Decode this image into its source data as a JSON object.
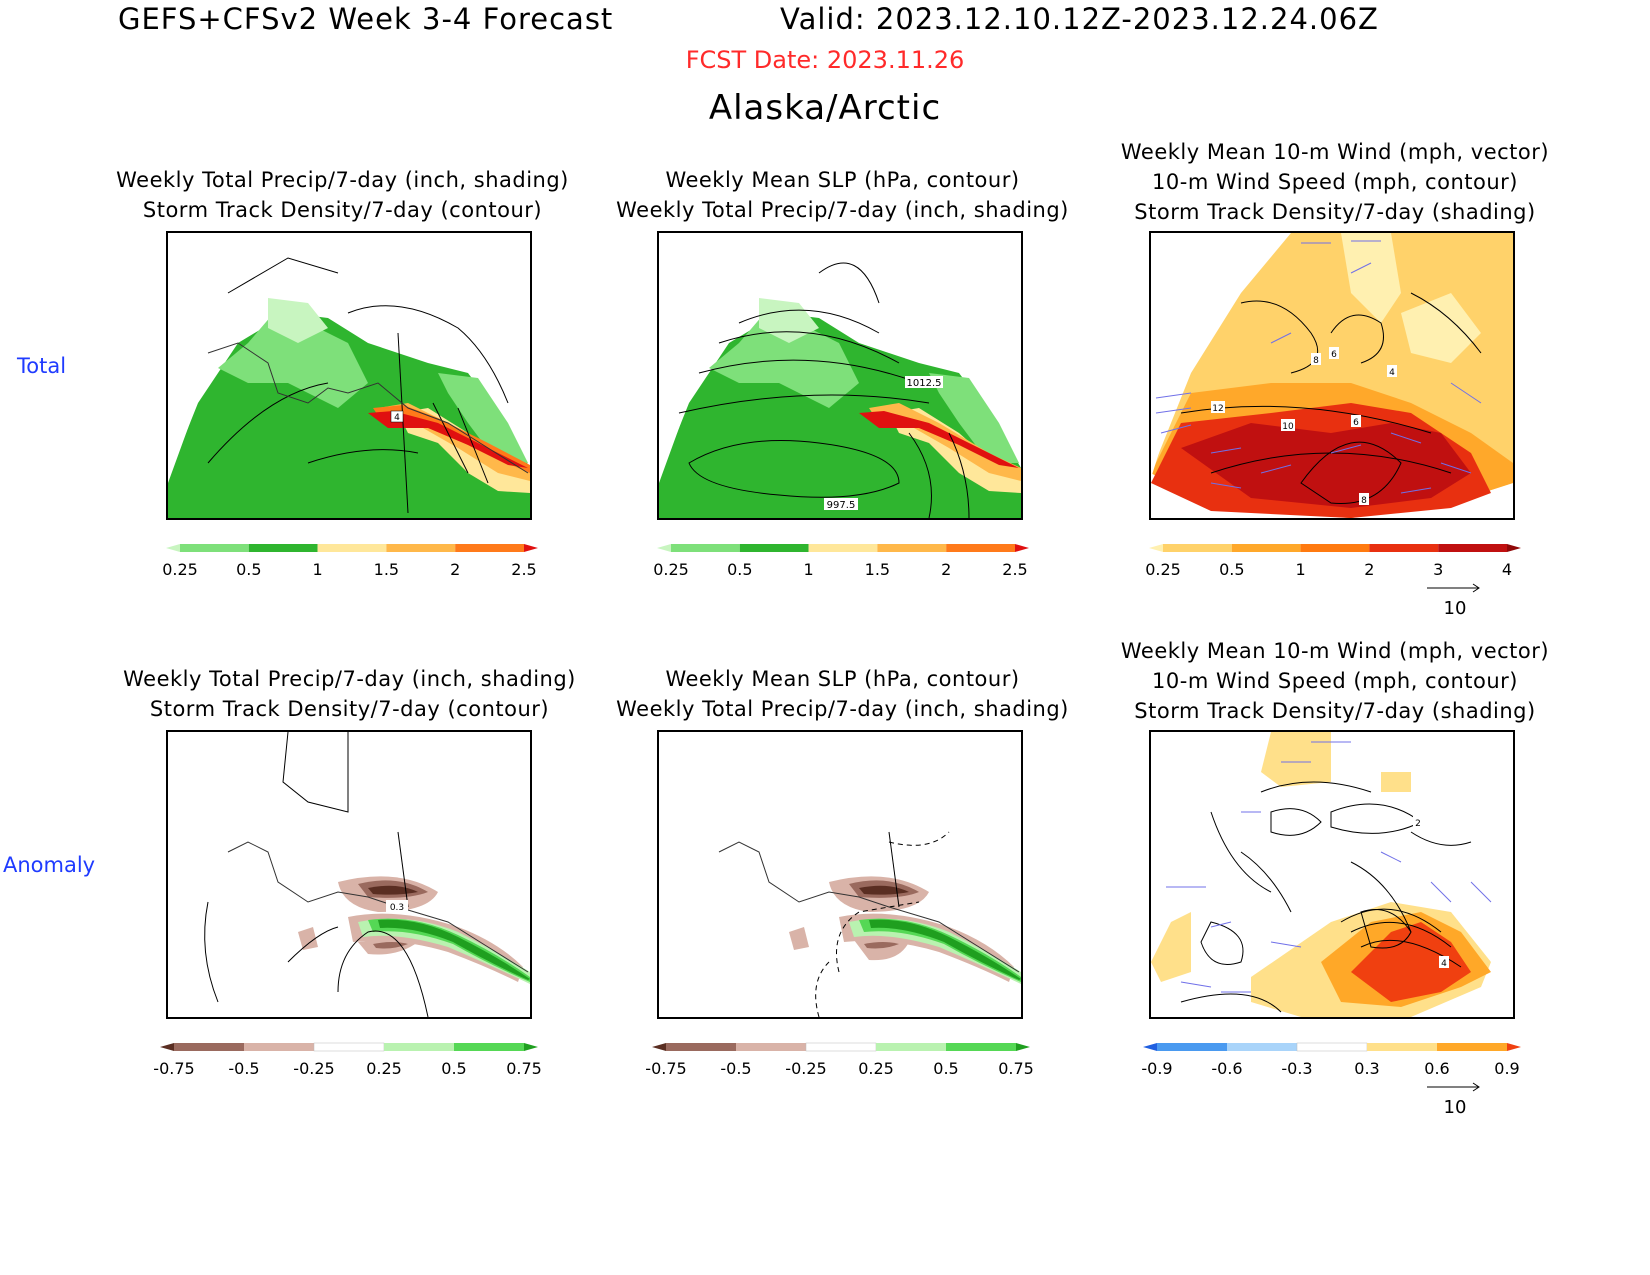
{
  "header": {
    "title": "GEFS+CFSv2 Week 3-4 Forecast",
    "valid": "Valid: 2023.12.10.12Z-2023.12.24.06Z",
    "fcst_date": "FCST Date: 2023.11.26",
    "region": "Alaska/Arctic"
  },
  "rows": {
    "total": "Total",
    "anomaly": "Anomaly"
  },
  "panels": {
    "p1": {
      "line1": "Weekly Total Precip/7-day (inch, shading)",
      "line2": "Storm Track Density/7-day (contour)"
    },
    "p2": {
      "line1": "Weekly Mean SLP (hPa, contour)",
      "line2": "Weekly Total Precip/7-day (inch, shading)"
    },
    "p3": {
      "line1": "Weekly Mean 10-m Wind (mph, vector)",
      "line2": "10-m Wind Speed (mph, contour)",
      "line3": "Storm Track Density/7-day (shading)"
    }
  },
  "contour_labels": {
    "p1_total": [
      "4"
    ],
    "p2_total": [
      "1012.5",
      "997.5"
    ],
    "p3_total": [
      "6",
      "8",
      "4",
      "12",
      "10",
      "6",
      "8"
    ],
    "p1_anom": [
      "0.3"
    ],
    "p3_anom": [
      "2",
      "4"
    ]
  },
  "colorbars": {
    "precip_total": {
      "labels": [
        "0.25",
        "0.5",
        "1",
        "1.5",
        "2",
        "2.5"
      ],
      "colors": [
        "#c8f5c0",
        "#7ee07a",
        "#2fb52f",
        "#ffe79a",
        "#ffb84a",
        "#ff7a1a",
        "#e01010"
      ]
    },
    "storm_total": {
      "labels": [
        "0.25",
        "0.5",
        "1",
        "2",
        "3",
        "4"
      ],
      "colors": [
        "#fff0b0",
        "#ffd26a",
        "#ffa82a",
        "#ff7a10",
        "#e83010",
        "#c01010",
        "#900808"
      ]
    },
    "precip_anom": {
      "labels": [
        "-0.75",
        "-0.5",
        "-0.25",
        "0.25",
        "0.5",
        "0.75"
      ],
      "colors": [
        "#5a2e22",
        "#9a6a5e",
        "#d9b3a8",
        "#ffffff",
        "#b9f2b0",
        "#55d855",
        "#1f9f1f"
      ]
    },
    "storm_anom": {
      "labels": [
        "-0.9",
        "-0.6",
        "-0.3",
        "0.3",
        "0.6",
        "0.9"
      ],
      "colors": [
        "#1f5fe0",
        "#4a9af0",
        "#a9d4fa",
        "#ffffff",
        "#ffe08a",
        "#ffa828",
        "#f04010"
      ]
    }
  },
  "vector_reference": "10",
  "colors": {
    "fcst_date": "#ff2a2a",
    "row_label": "#1f3bff",
    "wind_vector": "#7070e8"
  }
}
